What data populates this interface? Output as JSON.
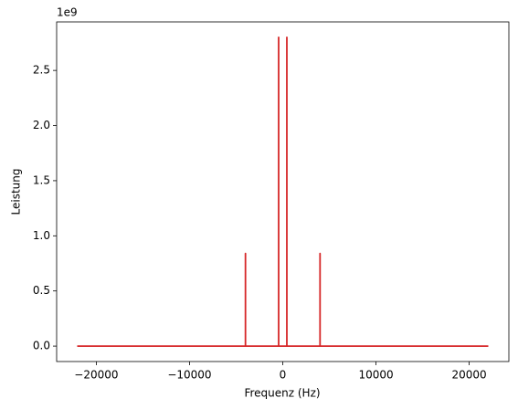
{
  "chart_data": {
    "type": "line",
    "xlabel": "Frequenz (Hz)",
    "ylabel": "Leistung",
    "y_offset_text": "1e9",
    "x": [
      -22050,
      -4000,
      -4000,
      -4000,
      -440,
      -440,
      -440,
      440,
      440,
      440,
      4000,
      4000,
      4000,
      22050
    ],
    "values": [
      0,
      0,
      840000000,
      0,
      0,
      2800000000,
      0,
      0,
      2800000000,
      0,
      0,
      840000000,
      0,
      0
    ],
    "color": "#d62728",
    "xlim": [
      -24255,
      24255
    ],
    "xticks": [
      {
        "value": -20000,
        "label": "−20000"
      },
      {
        "value": -10000,
        "label": "−10000"
      },
      0,
      10000,
      20000
    ],
    "ylim": [
      -140000000,
      2940000000
    ],
    "yticks": [
      {
        "value": 0,
        "label": "0.0"
      },
      {
        "value": 500000000,
        "label": "0.5"
      },
      {
        "value": 1000000000,
        "label": "1.0"
      },
      {
        "value": 1500000000,
        "label": "1.5"
      },
      {
        "value": 2000000000,
        "label": "2.0"
      },
      {
        "value": 2500000000,
        "label": "2.5"
      }
    ],
    "grid": false
  }
}
